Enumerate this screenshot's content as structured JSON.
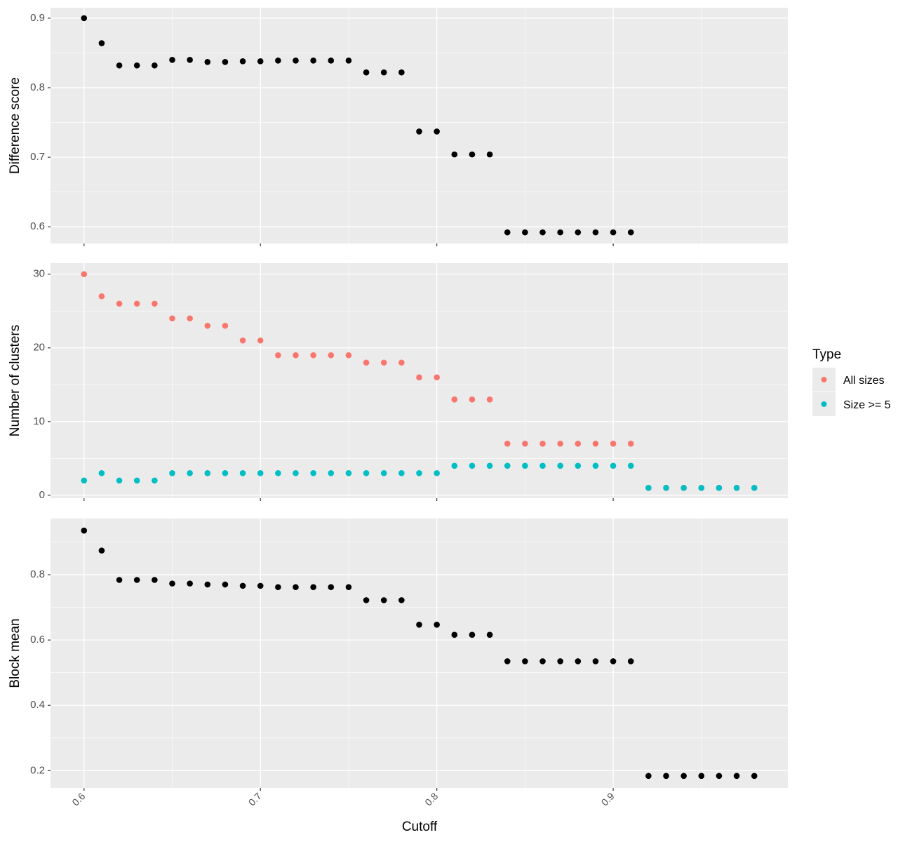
{
  "colors": {
    "panel_bg": "#EBEBEB",
    "grid_major": "#FFFFFF",
    "tick_text": "#4D4D4D",
    "black": "#000000",
    "all_sizes": "#F8766D",
    "size_ge_5": "#00BFC4"
  },
  "chart_data": [
    {
      "type": "scatter",
      "name": "difference-score",
      "ylabel": "Difference score",
      "xlabel": "",
      "xlim": [
        0.581,
        0.999
      ],
      "ylim": [
        0.576,
        0.915
      ],
      "x_ticks": [
        0.6,
        0.7,
        0.8,
        0.9
      ],
      "x_tick_labels": [
        "0.6",
        "0.7",
        "0.8",
        "0.9"
      ],
      "y_ticks": [
        0.6,
        0.7,
        0.8,
        0.9
      ],
      "y_tick_labels": [
        "0.6",
        "0.7",
        "0.8",
        "0.9"
      ],
      "series": [
        {
          "name": "Difference score",
          "color": "#000000",
          "x": [
            0.6,
            0.61,
            0.62,
            0.63,
            0.64,
            0.65,
            0.66,
            0.67,
            0.68,
            0.69,
            0.7,
            0.71,
            0.72,
            0.73,
            0.74,
            0.75,
            0.76,
            0.77,
            0.78,
            0.79,
            0.8,
            0.81,
            0.82,
            0.83,
            0.84,
            0.85,
            0.86,
            0.87,
            0.88,
            0.89,
            0.9,
            0.91
          ],
          "y": [
            0.9,
            0.864,
            0.832,
            0.832,
            0.832,
            0.84,
            0.84,
            0.837,
            0.837,
            0.838,
            0.838,
            0.839,
            0.839,
            0.839,
            0.839,
            0.839,
            0.822,
            0.822,
            0.822,
            0.737,
            0.737,
            0.704,
            0.704,
            0.704,
            0.592,
            0.592,
            0.592,
            0.592,
            0.592,
            0.592,
            0.592,
            0.592
          ]
        }
      ]
    },
    {
      "type": "scatter",
      "name": "number-of-clusters",
      "ylabel": "Number of clusters",
      "xlabel": "",
      "xlim": [
        0.581,
        0.999
      ],
      "ylim": [
        -0.4,
        31.5
      ],
      "x_ticks": [
        0.6,
        0.7,
        0.8,
        0.9
      ],
      "x_tick_labels": [
        "0.6",
        "0.7",
        "0.8",
        "0.9"
      ],
      "y_ticks": [
        0,
        10,
        20,
        30
      ],
      "y_tick_labels": [
        "0",
        "10",
        "20",
        "30"
      ],
      "series": [
        {
          "name": "All sizes",
          "color": "#F8766D",
          "x": [
            0.6,
            0.61,
            0.62,
            0.63,
            0.64,
            0.65,
            0.66,
            0.67,
            0.68,
            0.69,
            0.7,
            0.71,
            0.72,
            0.73,
            0.74,
            0.75,
            0.76,
            0.77,
            0.78,
            0.79,
            0.8,
            0.81,
            0.82,
            0.83,
            0.84,
            0.85,
            0.86,
            0.87,
            0.88,
            0.89,
            0.9,
            0.91,
            0.92,
            0.93,
            0.94,
            0.95,
            0.96,
            0.97,
            0.98
          ],
          "y": [
            30,
            27,
            26,
            26,
            26,
            24,
            24,
            23,
            23,
            21,
            21,
            19,
            19,
            19,
            19,
            19,
            18,
            18,
            18,
            16,
            16,
            13,
            13,
            13,
            7,
            7,
            7,
            7,
            7,
            7,
            7,
            7,
            1,
            1,
            1,
            1,
            1,
            1,
            1
          ]
        },
        {
          "name": "Size >= 5",
          "color": "#00BFC4",
          "x": [
            0.6,
            0.61,
            0.62,
            0.63,
            0.64,
            0.65,
            0.66,
            0.67,
            0.68,
            0.69,
            0.7,
            0.71,
            0.72,
            0.73,
            0.74,
            0.75,
            0.76,
            0.77,
            0.78,
            0.79,
            0.8,
            0.81,
            0.82,
            0.83,
            0.84,
            0.85,
            0.86,
            0.87,
            0.88,
            0.89,
            0.9,
            0.91,
            0.92,
            0.93,
            0.94,
            0.95,
            0.96,
            0.97,
            0.98
          ],
          "y": [
            2,
            3,
            2,
            2,
            2,
            3,
            3,
            3,
            3,
            3,
            3,
            3,
            3,
            3,
            3,
            3,
            3,
            3,
            3,
            3,
            3,
            4,
            4,
            4,
            4,
            4,
            4,
            4,
            4,
            4,
            4,
            4,
            1,
            1,
            1,
            1,
            1,
            1,
            1
          ]
        }
      ]
    },
    {
      "type": "scatter",
      "name": "block-mean",
      "ylabel": "Block mean",
      "xlabel": "Cutoff",
      "xlim": [
        0.581,
        0.999
      ],
      "ylim": [
        0.147,
        0.972
      ],
      "x_ticks": [
        0.6,
        0.7,
        0.8,
        0.9
      ],
      "x_tick_labels": [
        "0.6",
        "0.7",
        "0.8",
        "0.9"
      ],
      "y_ticks": [
        0.2,
        0.4,
        0.6,
        0.8
      ],
      "y_tick_labels": [
        "0.2",
        "0.4",
        "0.6",
        "0.8"
      ],
      "series": [
        {
          "name": "Block mean",
          "color": "#000000",
          "x": [
            0.6,
            0.61,
            0.62,
            0.63,
            0.64,
            0.65,
            0.66,
            0.67,
            0.68,
            0.69,
            0.7,
            0.71,
            0.72,
            0.73,
            0.74,
            0.75,
            0.76,
            0.77,
            0.78,
            0.79,
            0.8,
            0.81,
            0.82,
            0.83,
            0.84,
            0.85,
            0.86,
            0.87,
            0.88,
            0.89,
            0.9,
            0.91,
            0.92,
            0.93,
            0.94,
            0.95,
            0.96,
            0.97,
            0.98
          ],
          "y": [
            0.935,
            0.874,
            0.784,
            0.784,
            0.784,
            0.773,
            0.773,
            0.77,
            0.77,
            0.766,
            0.766,
            0.762,
            0.762,
            0.762,
            0.762,
            0.762,
            0.722,
            0.722,
            0.722,
            0.647,
            0.647,
            0.616,
            0.616,
            0.616,
            0.535,
            0.535,
            0.535,
            0.535,
            0.535,
            0.535,
            0.535,
            0.535,
            0.184,
            0.184,
            0.184,
            0.184,
            0.184,
            0.184,
            0.184
          ]
        }
      ]
    }
  ],
  "legend": {
    "title": "Type",
    "items": [
      {
        "label": "All sizes",
        "color": "#F8766D"
      },
      {
        "label": "Size >= 5",
        "color": "#00BFC4"
      }
    ]
  }
}
